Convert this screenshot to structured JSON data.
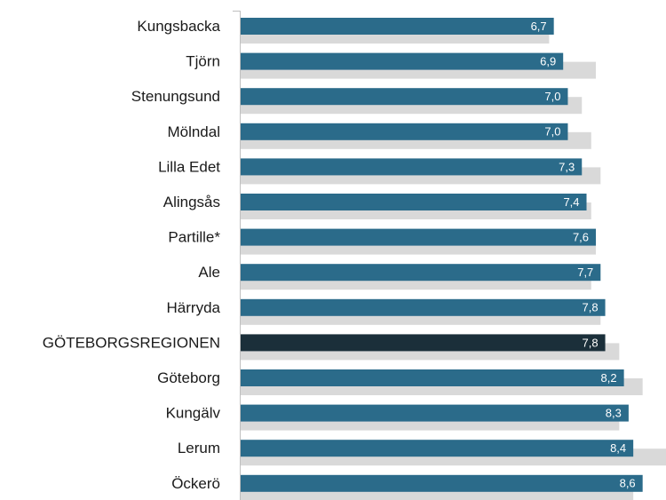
{
  "chart_data": {
    "type": "hbar",
    "categories": [
      "Kungsbacka",
      "Tjörn",
      "Stenungsund",
      "Mölndal",
      "Lilla Edet",
      "Alingsås",
      "Partille*",
      "Ale",
      "Härryda",
      "GÖTEBORGSREGIONEN",
      "Göteborg",
      "Kungälv",
      "Lerum",
      "Öckerö"
    ],
    "series": [
      {
        "color": "#d9d9d9",
        "values": [
          6.6,
          7.6,
          7.3,
          7.5,
          7.7,
          7.5,
          7.6,
          7.5,
          7.7,
          8.1,
          8.6,
          8.1,
          9.1,
          8.4
        ]
      },
      {
        "color": "#2b6b8a",
        "colors": [
          "#2b6b8a",
          "#2b6b8a",
          "#2b6b8a",
          "#2b6b8a",
          "#2b6b8a",
          "#2b6b8a",
          "#2b6b8a",
          "#2b6b8a",
          "#2b6b8a",
          "#1b2f3a",
          "#2b6b8a",
          "#2b6b8a",
          "#2b6b8a",
          "#2b6b8a"
        ],
        "values": [
          6.7,
          6.9,
          7.0,
          7.0,
          7.3,
          7.4,
          7.6,
          7.7,
          7.8,
          7.8,
          8.2,
          8.3,
          8.4,
          8.6
        ],
        "value_labels": [
          "6,7",
          "6,9",
          "7,0",
          "7,0",
          "7,3",
          "7,4",
          "7,6",
          "7,7",
          "7,8",
          "7,8",
          "8,2",
          "8,3",
          "8,4",
          "8,6"
        ]
      }
    ],
    "xlim": [
      0,
      9.1
    ]
  }
}
